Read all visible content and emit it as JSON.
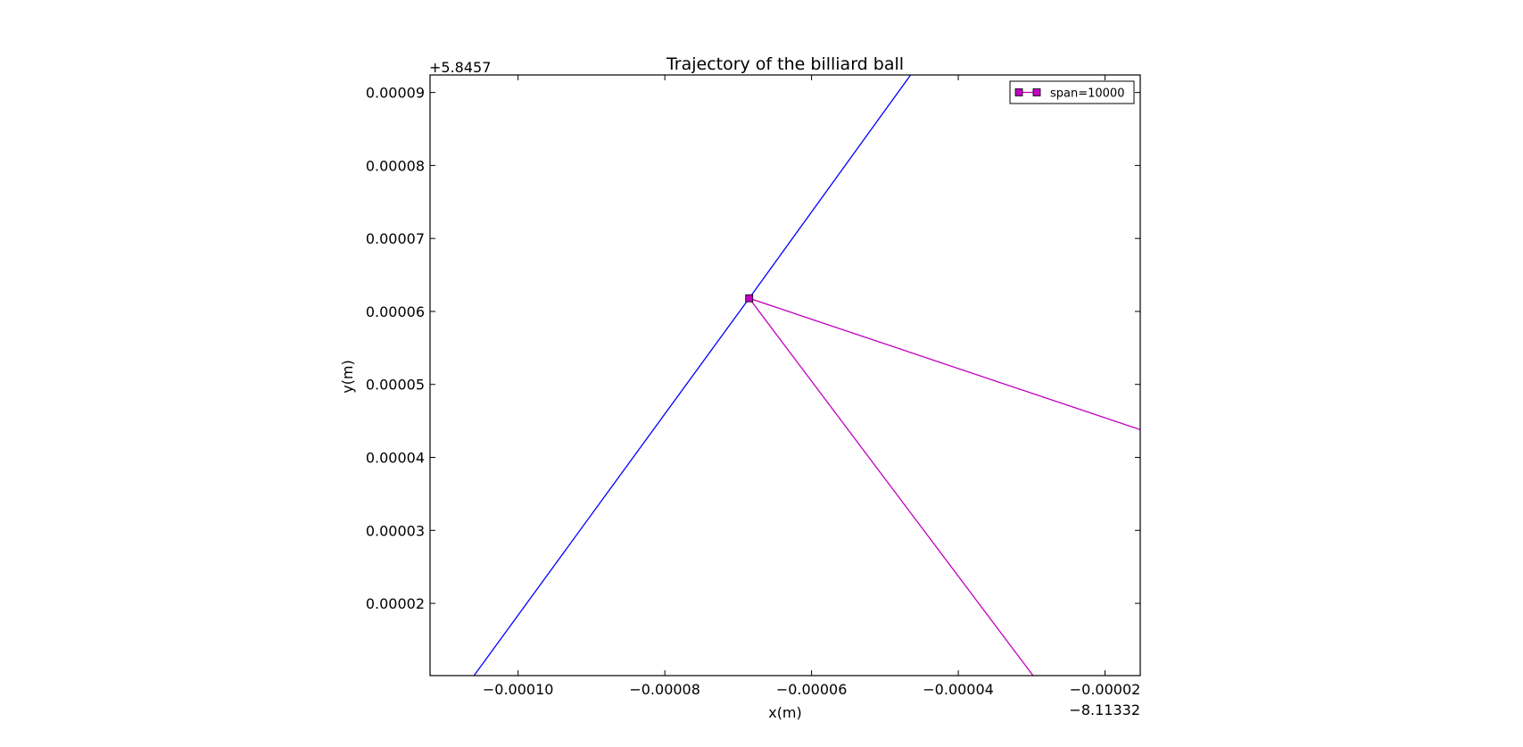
{
  "chart_data": {
    "type": "line",
    "title": "Trajectory of the billiard ball",
    "xlabel": "x(m)",
    "ylabel": "y(m)",
    "x_offset_label": "−8.11332",
    "y_offset_label": "+5.8457",
    "x_offset": -8.11332,
    "y_offset": 5.8457,
    "xlim": [
      -0.000112,
      -1.52e-05
    ],
    "ylim": [
      1.01e-05,
      9.24e-05
    ],
    "xticks": [
      -0.0001,
      -8e-05,
      -6e-05,
      -4e-05,
      -2e-05
    ],
    "xtick_labels": [
      "−0.00010",
      "−0.00008",
      "−0.00006",
      "−0.00004",
      "−0.00002"
    ],
    "yticks": [
      2e-05,
      3e-05,
      4e-05,
      5e-05,
      6e-05,
      7e-05,
      8e-05,
      9e-05
    ],
    "ytick_labels": [
      "0.00002",
      "0.00003",
      "0.00004",
      "0.00005",
      "0.00006",
      "0.00007",
      "0.00008",
      "0.00009"
    ],
    "grid": false,
    "legend": {
      "position": "top-right",
      "entries": [
        "span=10000"
      ]
    },
    "series": [
      {
        "color": "#0000ff",
        "marker": "none",
        "points": [
          [
            -0.000106,
            1.01e-05
          ],
          [
            -6.85e-05,
            6.18e-05
          ],
          [
            -4.65e-05,
            9.24e-05
          ]
        ]
      },
      {
        "name": "span=10000",
        "color": "#bf00bf",
        "marker": "square",
        "marker_points": [
          [
            -6.85e-05,
            6.18e-05
          ]
        ],
        "points": [
          [
            -2.98e-05,
            1.01e-05
          ],
          [
            -6.85e-05,
            6.18e-05
          ],
          [
            -1.52e-05,
            4.38e-05
          ]
        ]
      }
    ]
  }
}
